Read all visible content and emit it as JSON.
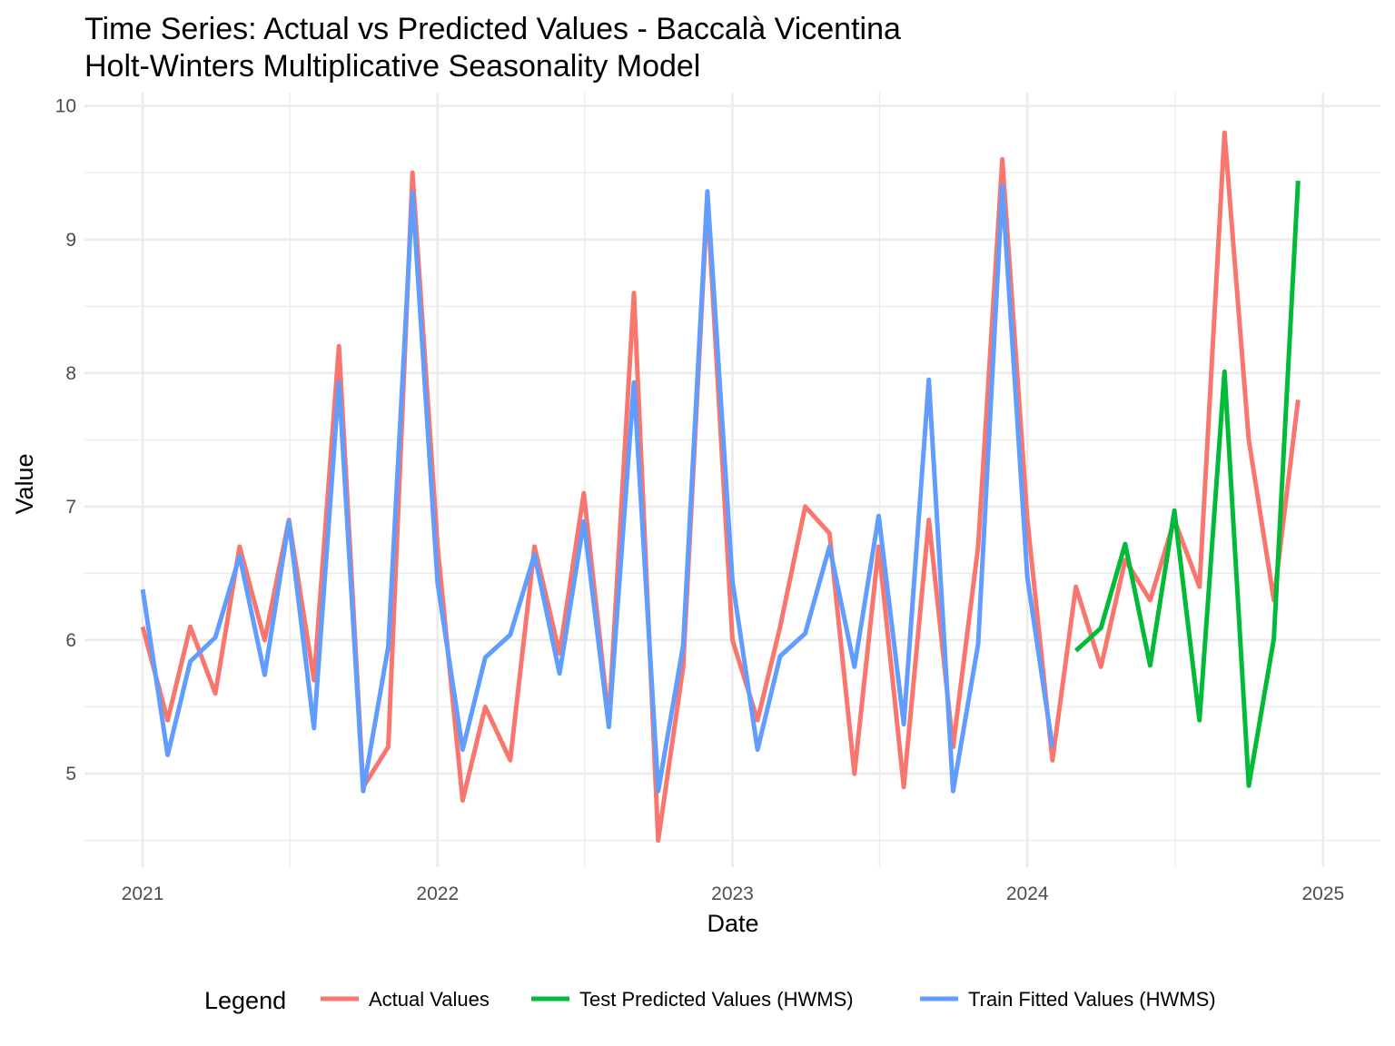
{
  "chart_data": {
    "type": "line",
    "title": "Time Series: Actual vs Predicted Values - Baccalà Vicentina",
    "subtitle": "Holt-Winters Multiplicative Seasonality Model",
    "xlabel": "Date",
    "ylabel": "Value",
    "x_ticks": [
      "2021",
      "2022",
      "2023",
      "2024",
      "2025"
    ],
    "y_ticks": [
      5,
      6,
      7,
      8,
      9,
      10
    ],
    "xlim": [
      "2020-10-21",
      "2025-03-13"
    ],
    "ylim": [
      4.3,
      10.1
    ],
    "grid": true,
    "legend_title": "Legend",
    "legend_position": "bottom",
    "series": [
      {
        "name": "Actual Values",
        "color": "#F8766D",
        "x": [
          "2021-01-01",
          "2021-02-01",
          "2021-03-01",
          "2021-04-01",
          "2021-05-01",
          "2021-06-01",
          "2021-07-01",
          "2021-08-01",
          "2021-09-01",
          "2021-10-01",
          "2021-11-01",
          "2021-12-01",
          "2022-01-01",
          "2022-02-01",
          "2022-03-01",
          "2022-04-01",
          "2022-05-01",
          "2022-06-01",
          "2022-07-01",
          "2022-08-01",
          "2022-09-01",
          "2022-10-01",
          "2022-11-01",
          "2022-12-01",
          "2023-01-01",
          "2023-02-01",
          "2023-03-01",
          "2023-04-01",
          "2023-05-01",
          "2023-06-01",
          "2023-07-01",
          "2023-08-01",
          "2023-09-01",
          "2023-10-01",
          "2023-11-01",
          "2023-12-01",
          "2024-01-01",
          "2024-02-01",
          "2024-03-01",
          "2024-04-01",
          "2024-05-01",
          "2024-06-01",
          "2024-07-01",
          "2024-08-01",
          "2024-09-01",
          "2024-10-01",
          "2024-11-01",
          "2024-12-01"
        ],
        "y": [
          6.1,
          5.4,
          6.1,
          5.6,
          6.7,
          6.0,
          6.9,
          5.7,
          8.2,
          4.9,
          5.2,
          9.5,
          6.7,
          4.8,
          5.5,
          5.1,
          6.7,
          5.9,
          7.1,
          5.4,
          8.6,
          4.5,
          5.8,
          9.3,
          6.0,
          5.4,
          6.1,
          7.0,
          6.8,
          5.0,
          6.7,
          4.9,
          6.9,
          5.2,
          6.7,
          9.6,
          6.9,
          5.1,
          6.4,
          5.8,
          6.6,
          6.3,
          6.9,
          6.4,
          9.8,
          7.5,
          6.3,
          7.8
        ]
      },
      {
        "name": "Test Predicted Values (HWMS)",
        "color": "#00BA38",
        "x": [
          "2024-03-01",
          "2024-04-01",
          "2024-05-01",
          "2024-06-01",
          "2024-07-01",
          "2024-08-01",
          "2024-09-01",
          "2024-10-01",
          "2024-11-01",
          "2024-12-01"
        ],
        "y": [
          5.92,
          6.09,
          6.72,
          5.81,
          6.97,
          5.4,
          8.01,
          4.91,
          6.01,
          9.44
        ]
      },
      {
        "name": "Train Fitted Values (HWMS)",
        "color": "#619CFF",
        "x": [
          "2021-01-01",
          "2021-02-01",
          "2021-03-01",
          "2021-04-01",
          "2021-05-01",
          "2021-06-01",
          "2021-07-01",
          "2021-08-01",
          "2021-09-01",
          "2021-10-01",
          "2021-11-01",
          "2021-12-01",
          "2022-01-01",
          "2022-02-01",
          "2022-03-01",
          "2022-04-01",
          "2022-05-01",
          "2022-06-01",
          "2022-07-01",
          "2022-08-01",
          "2022-09-01",
          "2022-10-01",
          "2022-11-01",
          "2022-12-01",
          "2023-01-01",
          "2023-02-01",
          "2023-03-01",
          "2023-04-01",
          "2023-05-01",
          "2023-06-01",
          "2023-07-01",
          "2023-08-01",
          "2023-09-01",
          "2023-10-01",
          "2023-11-01",
          "2023-12-01",
          "2024-01-01",
          "2024-02-01"
        ],
        "y": [
          6.38,
          5.14,
          5.84,
          6.02,
          6.63,
          5.74,
          6.89,
          5.34,
          7.93,
          4.87,
          5.95,
          9.35,
          6.43,
          5.18,
          5.87,
          6.04,
          6.64,
          5.75,
          6.89,
          5.35,
          7.93,
          4.87,
          5.96,
          9.36,
          6.44,
          5.18,
          5.88,
          6.05,
          6.7,
          5.8,
          6.93,
          5.37,
          7.95,
          4.87,
          5.97,
          9.4,
          6.47,
          5.2
        ]
      }
    ]
  }
}
